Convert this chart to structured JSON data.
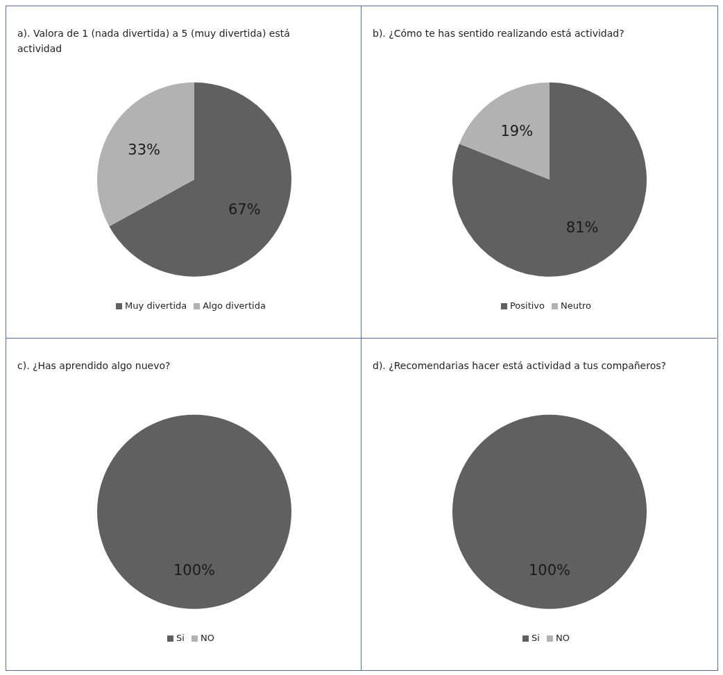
{
  "chart_data": [
    {
      "type": "pie",
      "title": "a). Valora de 1 (nada divertida) a 5 (muy divertida) está actividad",
      "categories": [
        "Muy divertida",
        "Algo divertida"
      ],
      "values": [
        67,
        33
      ],
      "colors": [
        "#606060",
        "#b2b2b2"
      ],
      "value_labels": [
        "67%",
        "33%"
      ],
      "legend": "bottom"
    },
    {
      "type": "pie",
      "title": "b). ¿Cómo te has sentido realizando está actividad?",
      "categories": [
        "Positivo",
        "Neutro"
      ],
      "values": [
        81,
        19
      ],
      "colors": [
        "#606060",
        "#b2b2b2"
      ],
      "value_labels": [
        "81%",
        "19%"
      ],
      "legend": "bottom"
    },
    {
      "type": "pie",
      "title": "c). ¿Has aprendido algo nuevo?",
      "categories": [
        "Si",
        "NO"
      ],
      "values": [
        100,
        0
      ],
      "colors": [
        "#606060",
        "#b2b2b2"
      ],
      "value_labels": [
        "100%",
        null
      ],
      "legend": "bottom"
    },
    {
      "type": "pie",
      "title": "d). ¿Recomendarias hacer está actividad a tus compañeros?",
      "categories": [
        "Si",
        "NO"
      ],
      "values": [
        100,
        0
      ],
      "colors": [
        "#606060",
        "#b2b2b2"
      ],
      "value_labels": [
        "100%",
        null
      ],
      "legend": "bottom"
    }
  ]
}
